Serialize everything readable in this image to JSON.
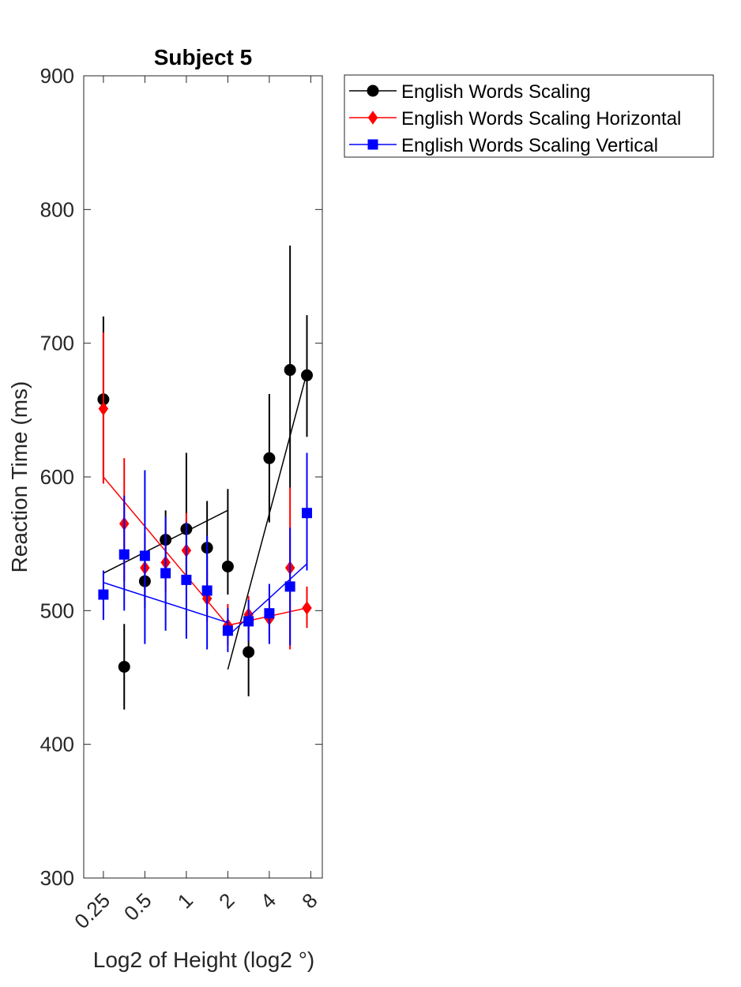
{
  "chart_data": {
    "type": "line",
    "title": "Subject 5",
    "xlabel": "Log2 of Height (log2 °)",
    "ylabel": "Reaction Time (ms)",
    "xscale": "log2",
    "ylim": [
      300,
      900
    ],
    "xlim": [
      0.18,
      9.7
    ],
    "yticks": [
      300,
      400,
      500,
      600,
      700,
      800,
      900
    ],
    "xticks": [
      0.25,
      0.5,
      1,
      2,
      4,
      8
    ],
    "xtick_labels": [
      "0.25",
      "0.5",
      "1",
      "2",
      "4",
      "8"
    ],
    "grid": false,
    "legend_position": "outside-top-right",
    "x": [
      0.25,
      0.354,
      0.5,
      0.707,
      1,
      1.414,
      2,
      2.828,
      4,
      5.657,
      7.5
    ],
    "series": [
      {
        "name": "English Words Scaling",
        "color": "#000000",
        "marker": "circle",
        "values": [
          658,
          458,
          522,
          553,
          561,
          547,
          533,
          469,
          614,
          680,
          676
        ],
        "error_low": [
          600,
          426,
          502,
          530,
          530,
          517,
          512,
          436,
          566,
          592,
          630
        ],
        "error_high": [
          720,
          490,
          544,
          575,
          618,
          582,
          591,
          500,
          662,
          773,
          721
        ],
        "fit_segments": [
          {
            "x": [
              0.25,
              2
            ],
            "y": [
              528,
              575
            ]
          },
          {
            "x": [
              2,
              7.5
            ],
            "y": [
              456,
              678
            ]
          }
        ]
      },
      {
        "name": "English Words Scaling Horizontal",
        "color": "#ff0000",
        "marker": "diamond",
        "values": [
          651,
          565,
          532,
          536,
          545,
          509,
          489,
          497,
          494,
          532,
          502
        ],
        "error_low": [
          595,
          522,
          507,
          514,
          520,
          492,
          474,
          483,
          480,
          471,
          487
        ],
        "error_high": [
          708,
          614,
          558,
          561,
          573,
          530,
          505,
          511,
          509,
          592,
          518
        ],
        "fit_segments": [
          {
            "x": [
              0.25,
              2
            ],
            "y": [
              600,
              489
            ]
          },
          {
            "x": [
              2,
              7.5
            ],
            "y": [
              489,
              502
            ]
          }
        ]
      },
      {
        "name": "English Words Scaling Vertical",
        "color": "#0000ff",
        "marker": "square",
        "values": [
          512,
          542,
          541,
          528,
          523,
          515,
          485,
          492,
          498,
          518,
          573
        ],
        "error_low": [
          493,
          500,
          475,
          485,
          479,
          471,
          469,
          477,
          475,
          474,
          530
        ],
        "error_high": [
          530,
          586,
          605,
          570,
          566,
          556,
          502,
          508,
          520,
          562,
          618
        ],
        "fit_segments": [
          {
            "x": [
              0.25,
              2
            ],
            "y": [
              521,
              491
            ]
          },
          {
            "x": [
              2,
              7.5
            ],
            "y": [
              481,
              535
            ]
          }
        ]
      }
    ]
  }
}
